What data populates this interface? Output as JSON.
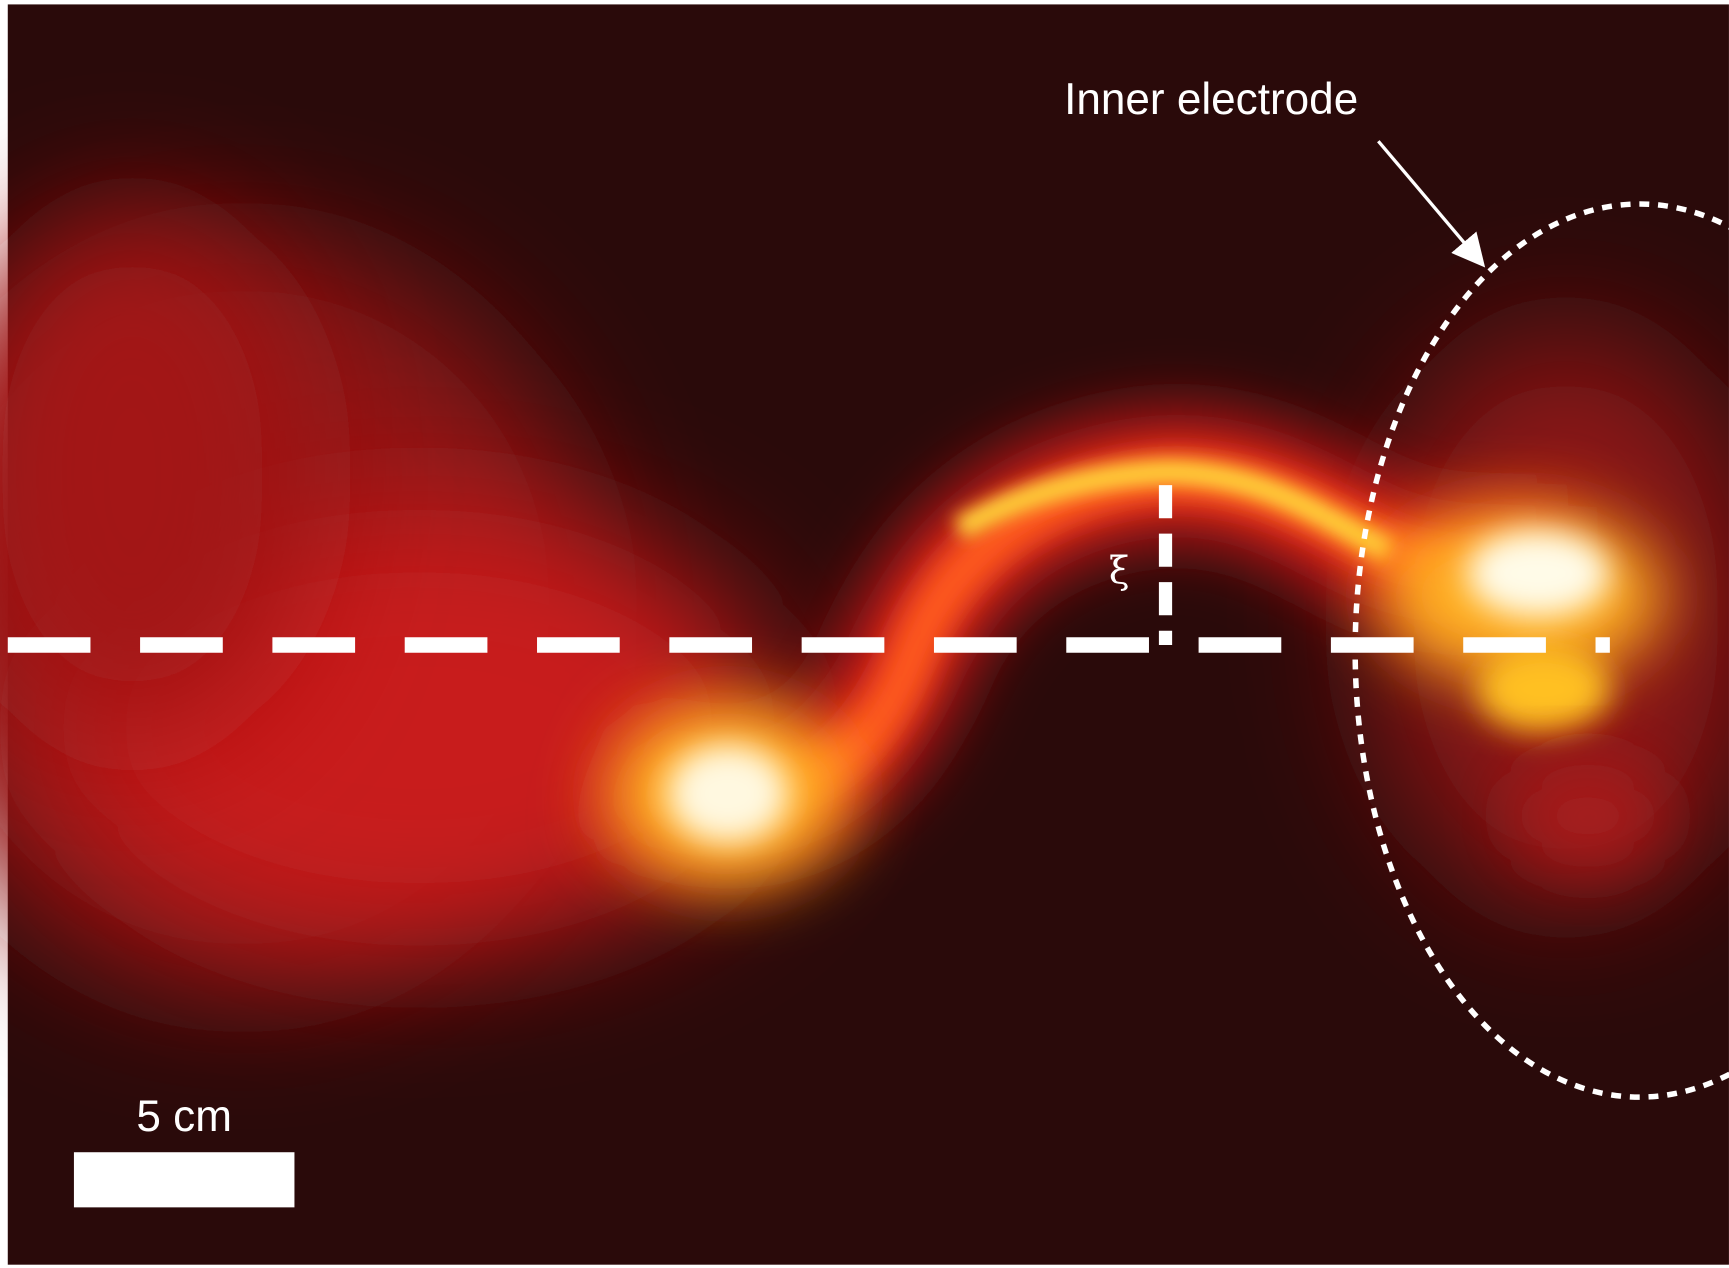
{
  "annotations": {
    "electrode_label": "Inner electrode",
    "displacement_symbol": "ξ",
    "scale_bar_label": "5 cm"
  }
}
